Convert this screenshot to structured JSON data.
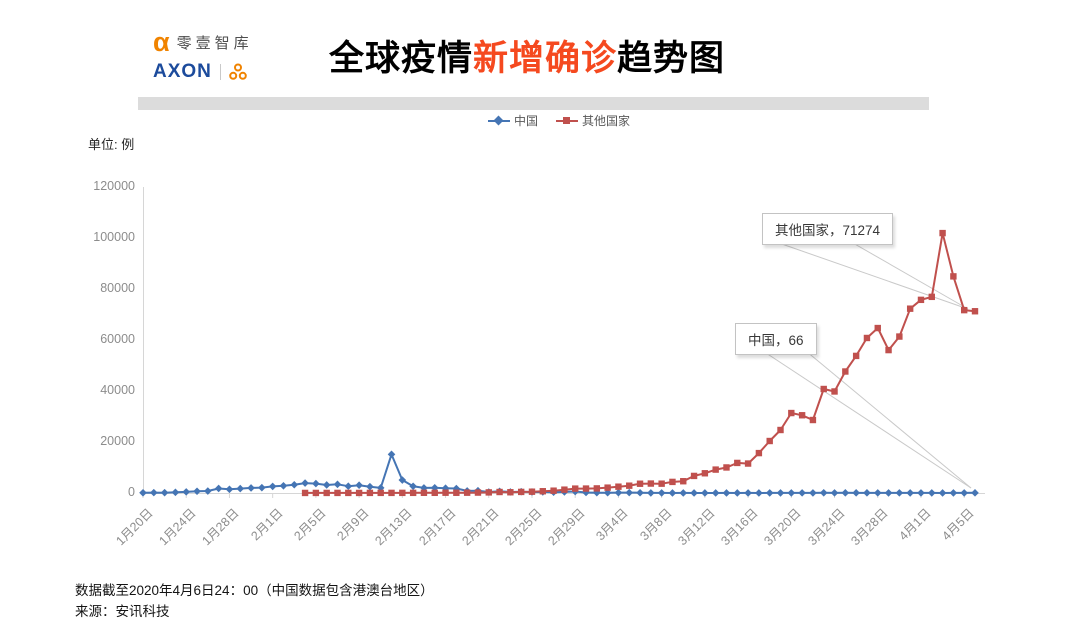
{
  "header": {
    "logo": {
      "alpha": "α",
      "brand_cn": "零壹智库",
      "brand_en": "AXON"
    },
    "title": {
      "prefix": "全球疫情",
      "highlight": "新增确诊",
      "suffix": "趋势图"
    }
  },
  "unit_label": "单位: 例",
  "legend": {
    "items": [
      {
        "label": "中国",
        "color": "#4575b4",
        "marker": "diamond"
      },
      {
        "label": "其他国家",
        "color": "#c0504d",
        "marker": "square"
      }
    ]
  },
  "annotations": [
    {
      "text": "其他国家，71274",
      "series": "其他国家",
      "value": 71274
    },
    {
      "text": "中国，66",
      "series": "中国",
      "value": 66
    }
  ],
  "footer": {
    "line1": "数据截至2020年4月6日24：00（中国数据包含港澳台地区）",
    "line2": "来源：安讯科技"
  },
  "colors": {
    "china_line": "#4575b4",
    "others_line": "#c0504d",
    "title_highlight": "#f5491f",
    "axis": "#d6d6d6",
    "axis_text": "#8c8c8c",
    "leader_line": "#c9c9c9",
    "header_bar": "#dcdcdc",
    "logo_orange": "#f08300",
    "logo_blue": "#1c4b9c"
  },
  "chart_data": {
    "type": "line",
    "title": "全球疫情新增确诊趋势图",
    "ylabel": "单位: 例",
    "ylim": [
      0,
      120000
    ],
    "y_ticks": [
      0,
      20000,
      40000,
      60000,
      80000,
      100000,
      120000
    ],
    "grid": false,
    "legend_position": "top",
    "x_tick_every": 4,
    "x_tick_labels": [
      "1月20日",
      "1月24日",
      "1月28日",
      "2月1日",
      "2月5日",
      "2月9日",
      "2月13日",
      "2月17日",
      "2月21日",
      "2月25日",
      "2月29日",
      "3月4日",
      "3月8日",
      "3月12日",
      "3月16日",
      "3月20日",
      "3月24日",
      "3月28日",
      "4月1日",
      "4月5日"
    ],
    "dates": [
      "1月20日",
      "1月21日",
      "1月22日",
      "1月23日",
      "1月24日",
      "1月25日",
      "1月26日",
      "1月27日",
      "1月28日",
      "1月29日",
      "1月30日",
      "1月31日",
      "2月1日",
      "2月2日",
      "2月3日",
      "2月4日",
      "2月5日",
      "2月6日",
      "2月7日",
      "2月8日",
      "2月9日",
      "2月10日",
      "2月11日",
      "2月12日",
      "2月13日",
      "2月14日",
      "2月15日",
      "2月16日",
      "2月17日",
      "2月18日",
      "2月19日",
      "2月20日",
      "2月21日",
      "2月22日",
      "2月23日",
      "2月24日",
      "2月25日",
      "2月26日",
      "2月27日",
      "2月28日",
      "2月29日",
      "3月1日",
      "3月2日",
      "3月3日",
      "3月4日",
      "3月5日",
      "3月6日",
      "3月7日",
      "3月8日",
      "3月9日",
      "3月10日",
      "3月11日",
      "3月12日",
      "3月13日",
      "3月14日",
      "3月15日",
      "3月16日",
      "3月17日",
      "3月18日",
      "3月19日",
      "3月20日",
      "3月21日",
      "3月22日",
      "3月23日",
      "3月24日",
      "3月25日",
      "3月26日",
      "3月27日",
      "3月28日",
      "3月29日",
      "3月30日",
      "3月31日",
      "4月1日",
      "4月2日",
      "4月3日",
      "4月4日",
      "4月5日",
      "4月6日"
    ],
    "series": [
      {
        "name": "中国",
        "color": "#4575b4",
        "marker": "diamond",
        "values": [
          77,
          149,
          131,
          259,
          444,
          688,
          769,
          1771,
          1459,
          1737,
          1982,
          2102,
          2590,
          2829,
          3235,
          3887,
          3694,
          3143,
          3399,
          2656,
          3062,
          2478,
          2015,
          15152,
          5090,
          2641,
          2009,
          2048,
          1886,
          1749,
          820,
          889,
          397,
          648,
          409,
          508,
          406,
          433,
          327,
          427,
          573,
          202,
          125,
          119,
          139,
          143,
          99,
          44,
          40,
          19,
          24,
          15,
          8,
          11,
          20,
          16,
          21,
          13,
          34,
          39,
          41,
          46,
          39,
          78,
          47,
          67,
          55,
          54,
          45,
          31,
          48,
          36,
          35,
          31,
          19,
          30,
          39,
          66
        ]
      },
      {
        "name": "其他国家",
        "color": "#c0504d",
        "marker": "square",
        "values": [
          null,
          null,
          null,
          null,
          null,
          null,
          null,
          null,
          null,
          null,
          null,
          null,
          null,
          null,
          null,
          23,
          27,
          29,
          34,
          38,
          23,
          40,
          51,
          46,
          54,
          59,
          84,
          71,
          110,
          90,
          121,
          161,
          235,
          390,
          294,
          427,
          508,
          691,
          909,
          1310,
          1723,
          1739,
          1806,
          2103,
          2479,
          2870,
          3633,
          3704,
          3656,
          4355,
          4616,
          6697,
          7736,
          9177,
          10017,
          11795,
          11549,
          15650,
          20389,
          24706,
          31357,
          30486,
          28623,
          40788,
          39817,
          47647,
          53762,
          60793,
          64687,
          56041,
          61350,
          72282,
          75747,
          76920,
          101927,
          84950,
          71710,
          71274
        ]
      }
    ]
  }
}
